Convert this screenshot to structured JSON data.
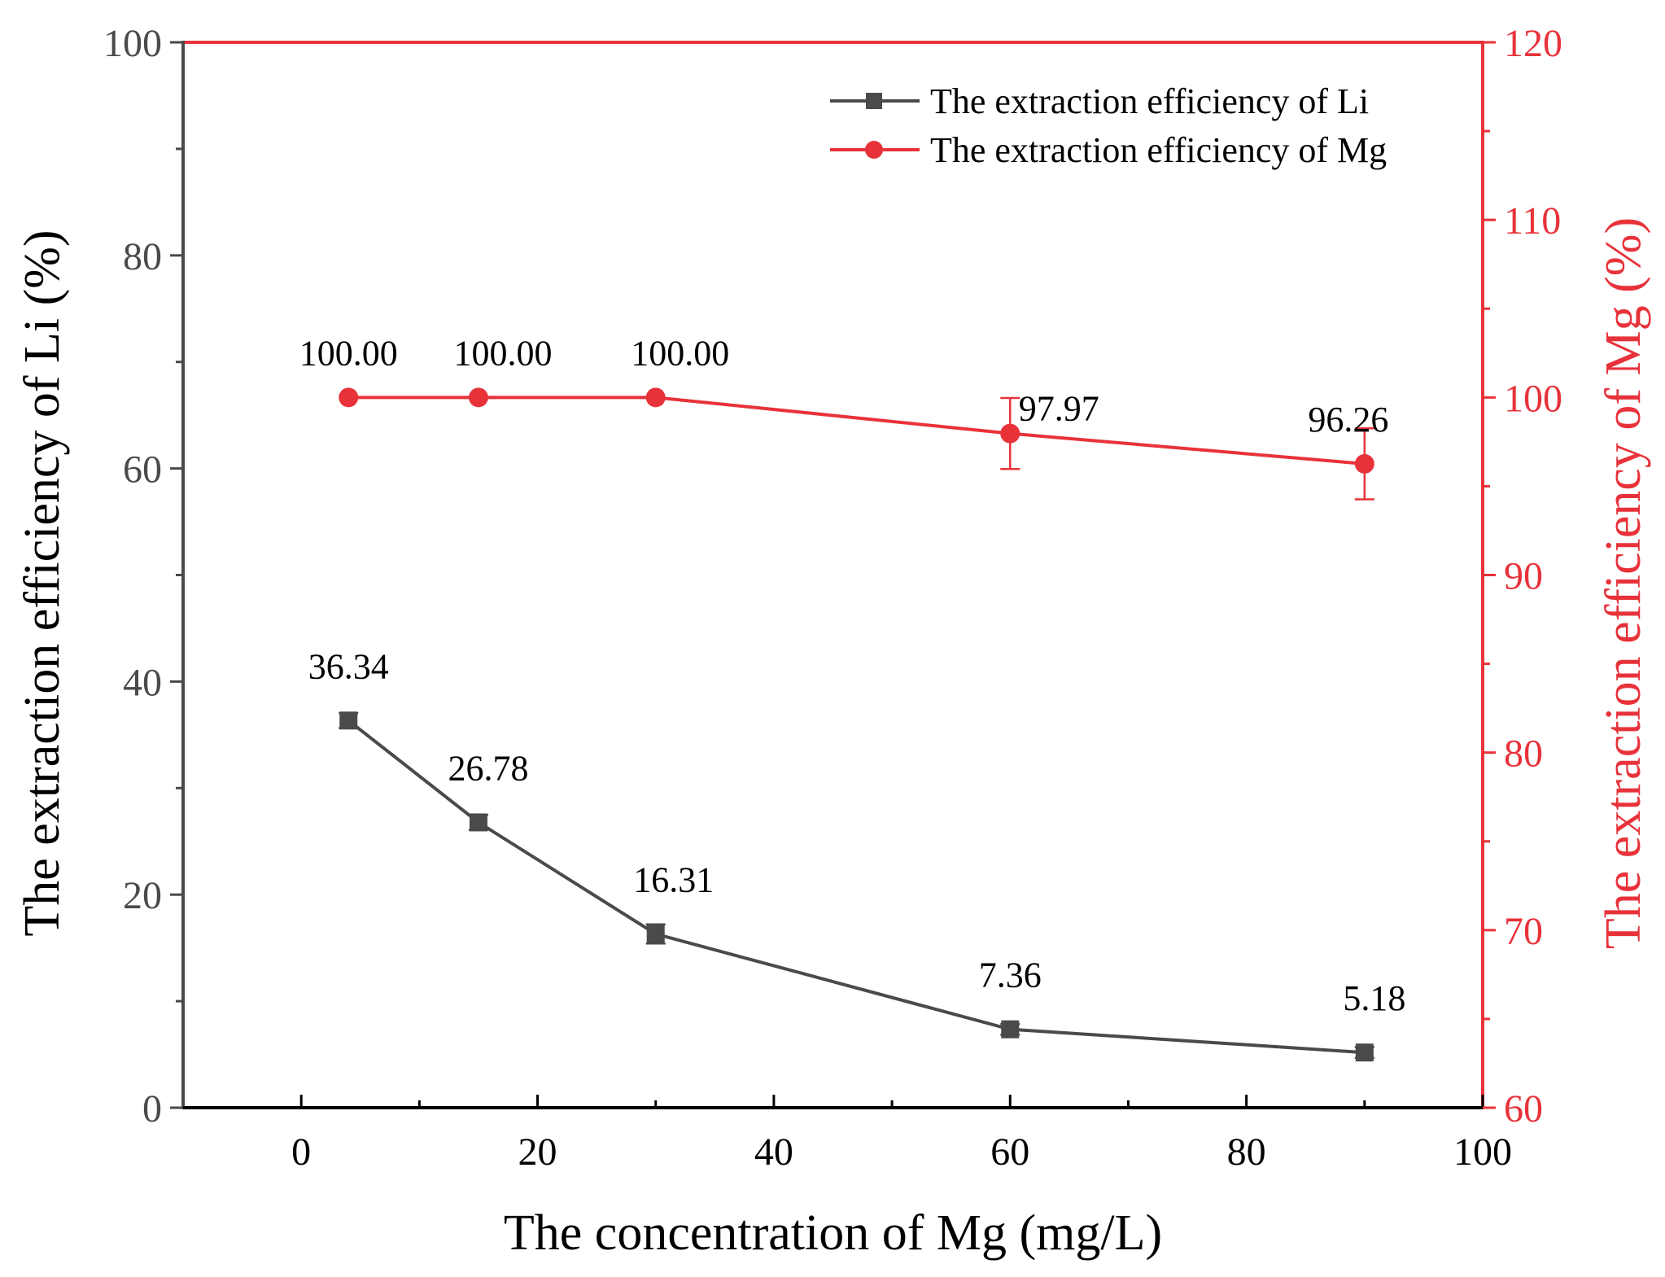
{
  "chart_data": {
    "type": "line",
    "xlabel": "The concentration of Mg (mg/L)",
    "ylabel_left": "The extraction efficiency of Li (%)",
    "ylabel_right": "The extraction efficiency of Mg (%)",
    "xlim": [
      -10,
      100
    ],
    "ylim_left": [
      0,
      100
    ],
    "ylim_right": [
      60,
      120
    ],
    "x_ticks": [
      0,
      20,
      40,
      60,
      80,
      100
    ],
    "y_left_ticks": [
      0,
      20,
      40,
      60,
      80,
      100
    ],
    "y_right_ticks": [
      60,
      70,
      80,
      90,
      100,
      110,
      120
    ],
    "colors": {
      "li": "#4a4a4a",
      "mg": "#e8323a",
      "axis_left": "#4a4a4a",
      "axis_right": "#e8323a",
      "axis_bottom": "#000000"
    },
    "series": [
      {
        "name": "The extraction efficiency of Li",
        "axis": "left",
        "marker": "square",
        "x": [
          4,
          15,
          30,
          60,
          90
        ],
        "values": [
          36.34,
          26.78,
          16.31,
          7.36,
          5.18
        ],
        "errors": [
          0.7,
          0.7,
          0.9,
          0.5,
          0.5
        ],
        "labels": [
          "36.34",
          "26.78",
          "16.31",
          "7.36",
          "5.18"
        ]
      },
      {
        "name": "The extraction efficiency of Mg",
        "axis": "right",
        "marker": "circle",
        "x": [
          4,
          15,
          30,
          60,
          90
        ],
        "values": [
          100.0,
          100.0,
          100.0,
          97.97,
          96.26
        ],
        "errors": [
          0,
          0,
          0,
          2.0,
          2.0
        ],
        "labels": [
          "100.00",
          "100.00",
          "100.00",
          "97.97",
          "96.26"
        ]
      }
    ],
    "legend": {
      "position": "top-right",
      "entries": [
        "The extraction efficiency of Li",
        "The extraction efficiency of Mg"
      ]
    }
  }
}
